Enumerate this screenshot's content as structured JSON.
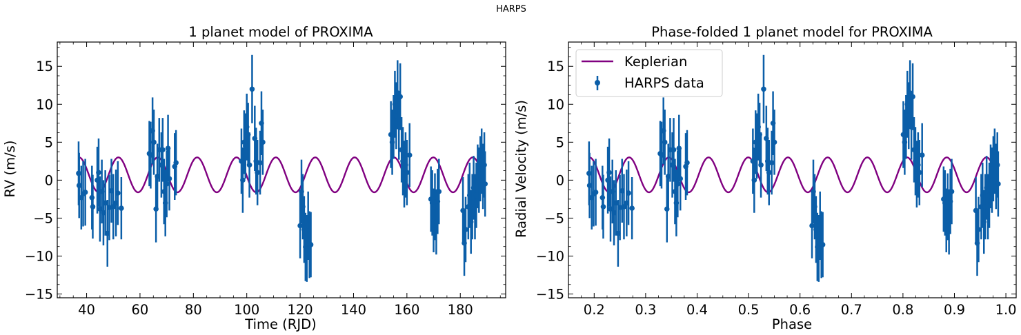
{
  "figure": {
    "suptitle": "HARPS"
  },
  "colors": {
    "model": "#800080",
    "data": "#0b5ea8",
    "axes": "#000000"
  },
  "chart_data": [
    {
      "type": "scatter",
      "title": "1 planet model of PROXIMA",
      "xlabel": "Time (RJD)",
      "ylabel": "RV (m/s)",
      "xlim": [
        29,
        197
      ],
      "ylim": [
        -15.5,
        18.2
      ],
      "xticks": [
        40,
        60,
        80,
        100,
        120,
        140,
        160,
        180
      ],
      "yticks": [
        -15,
        -10,
        -5,
        0,
        5,
        10,
        15
      ],
      "tick_labels_x": [
        "40",
        "60",
        "80",
        "100",
        "120",
        "140",
        "160",
        "180"
      ],
      "tick_labels_y": [
        "−15",
        "−10",
        "−5",
        "0",
        "5",
        "10",
        "15"
      ],
      "grid": false,
      "legend": null,
      "series": [
        {
          "kind": "model",
          "x_range": [
            37,
            189
          ],
          "offset": 0.7,
          "amplitude": 2.3,
          "period": 14.75,
          "phase_zero_x": 51.9
        },
        {
          "kind": "errorbar",
          "points": [
            [
              37.0,
              0.9,
              4.2
            ],
            [
              37.2,
              -0.7,
              4.3
            ],
            [
              38.0,
              -2.3,
              4.2
            ],
            [
              38.7,
              -1.8,
              4.3
            ],
            [
              39.5,
              -1.6,
              4.4
            ],
            [
              42.0,
              -2.3,
              4.2
            ],
            [
              42.3,
              -3.5,
              4.2
            ],
            [
              44.0,
              0.0,
              4.4
            ],
            [
              44.5,
              1.0,
              4.5
            ],
            [
              45.0,
              -3.8,
              4.3
            ],
            [
              45.7,
              -1.5,
              4.2
            ],
            [
              46.3,
              -4.3,
              4.3
            ],
            [
              47.0,
              -3.0,
              4.3
            ],
            [
              47.8,
              -7.0,
              4.4
            ],
            [
              48.5,
              -3.6,
              4.3
            ],
            [
              49.3,
              -1.4,
              4.2
            ],
            [
              50.0,
              -3.5,
              4.3
            ],
            [
              51.0,
              -3.0,
              4.4
            ],
            [
              51.7,
              -1.7,
              4.2
            ],
            [
              53.0,
              -3.7,
              4.1
            ],
            [
              63.5,
              3.5,
              4.3
            ],
            [
              64.0,
              3.3,
              4.4
            ],
            [
              64.7,
              6.5,
              4.4
            ],
            [
              65.2,
              5.0,
              4.3
            ],
            [
              66.0,
              -3.8,
              4.4
            ],
            [
              66.5,
              0.5,
              4.3
            ],
            [
              67.2,
              4.0,
              4.2
            ],
            [
              68.0,
              2.0,
              4.3
            ],
            [
              68.5,
              4.0,
              4.2
            ],
            [
              69.0,
              -1.5,
              4.3
            ],
            [
              69.5,
              -3.0,
              4.4
            ],
            [
              70.0,
              -0.5,
              4.4
            ],
            [
              70.5,
              4.2,
              4.4
            ],
            [
              71.0,
              0.2,
              4.2
            ],
            [
              73.0,
              1.8,
              4.4
            ],
            [
              73.5,
              2.3,
              4.3
            ],
            [
              98.0,
              2.5,
              4.3
            ],
            [
              98.5,
              0.0,
              4.3
            ],
            [
              99.0,
              5.0,
              4.2
            ],
            [
              99.5,
              4.5,
              4.3
            ],
            [
              100.0,
              7.0,
              4.4
            ],
            [
              100.5,
              6.0,
              4.2
            ],
            [
              101.0,
              2.0,
              4.3
            ],
            [
              102.0,
              12.0,
              4.5
            ],
            [
              103.0,
              5.5,
              4.3
            ],
            [
              103.5,
              2.5,
              4.4
            ],
            [
              104.0,
              1.0,
              4.3
            ],
            [
              105.0,
              2.3,
              4.2
            ],
            [
              105.5,
              7.5,
              4.2
            ],
            [
              106.0,
              5.0,
              4.3
            ],
            [
              120.0,
              -6.0,
              4.3
            ],
            [
              120.5,
              -1.5,
              4.2
            ],
            [
              121.0,
              -3.5,
              4.3
            ],
            [
              121.5,
              -6.5,
              4.4
            ],
            [
              122.0,
              -8.8,
              4.5
            ],
            [
              122.5,
              -9.0,
              4.4
            ],
            [
              123.0,
              -6.0,
              4.5
            ],
            [
              123.5,
              -8.5,
              4.4
            ],
            [
              124.0,
              -8.5,
              4.3
            ],
            [
              154.0,
              6.0,
              4.4
            ],
            [
              154.5,
              5.0,
              4.3
            ],
            [
              155.0,
              7.0,
              4.2
            ],
            [
              155.5,
              10.0,
              4.4
            ],
            [
              156.0,
              8.5,
              4.4
            ],
            [
              156.5,
              11.5,
              4.3
            ],
            [
              157.0,
              7.0,
              4.3
            ],
            [
              157.5,
              11.0,
              4.4
            ],
            [
              158.0,
              4.0,
              4.3
            ],
            [
              158.5,
              2.5,
              4.5
            ],
            [
              159.0,
              0.8,
              4.4
            ],
            [
              159.5,
              2.0,
              4.3
            ],
            [
              160.0,
              1.0,
              4.3
            ],
            [
              161.0,
              3.3,
              4.2
            ],
            [
              169.0,
              -2.5,
              4.3
            ],
            [
              169.5,
              -3.0,
              4.3
            ],
            [
              170.0,
              -5.3,
              4.2
            ],
            [
              170.5,
              -3.5,
              4.4
            ],
            [
              171.0,
              -5.5,
              4.3
            ],
            [
              171.5,
              -2.8,
              4.3
            ],
            [
              172.0,
              -1.5,
              4.3
            ],
            [
              181.0,
              -4.0,
              4.4
            ],
            [
              181.5,
              -8.3,
              4.3
            ],
            [
              182.0,
              -6.5,
              4.3
            ],
            [
              183.0,
              -3.5,
              4.3
            ],
            [
              183.5,
              -2.0,
              4.3
            ],
            [
              184.0,
              -5.5,
              4.2
            ],
            [
              184.5,
              -3.5,
              4.3
            ],
            [
              185.0,
              -1.0,
              4.2
            ],
            [
              185.5,
              -3.5,
              4.3
            ],
            [
              186.0,
              -2.0,
              4.3
            ],
            [
              186.5,
              0.5,
              4.2
            ],
            [
              187.0,
              0.0,
              4.3
            ],
            [
              187.5,
              1.5,
              4.3
            ],
            [
              188.0,
              2.5,
              4.3
            ],
            [
              188.5,
              0.5,
              4.3
            ],
            [
              189.0,
              2.0,
              4.3
            ],
            [
              189.3,
              -0.5,
              4.3
            ]
          ]
        }
      ]
    },
    {
      "type": "scatter",
      "title": "Phase-folded 1 planet model for PROXIMA",
      "xlabel": "Phase",
      "ylabel": "Radial Velocity (m/s)",
      "xlim": [
        0.15,
        1.02
      ],
      "ylim": [
        -15.5,
        18.2
      ],
      "xticks": [
        0.2,
        0.3,
        0.4,
        0.5,
        0.6,
        0.7,
        0.8,
        0.9,
        1.0
      ],
      "yticks": [
        -15,
        -10,
        -5,
        0,
        5,
        10,
        15
      ],
      "tick_labels_x": [
        "0.2",
        "0.3",
        "0.4",
        "0.5",
        "0.6",
        "0.7",
        "0.8",
        "0.9",
        "1.0"
      ],
      "tick_labels_y": [
        "−15",
        "−10",
        "−5",
        "0",
        "5",
        "10",
        "15"
      ],
      "grid": false,
      "legend": {
        "position": "top-left",
        "entries": [
          {
            "label": "Keplerian",
            "kind": "line"
          },
          {
            "label": "HARPS data",
            "kind": "errorbar"
          }
        ]
      },
      "series": [
        {
          "name": "Keplerian",
          "kind": "model",
          "x_range": [
            0.19,
            0.985
          ]
        },
        {
          "name": "HARPS data",
          "kind": "errorbar",
          "x_map": {
            "from": [
              37,
              189.3
            ],
            "to": [
              0.19,
              0.985
            ]
          }
        }
      ]
    }
  ]
}
